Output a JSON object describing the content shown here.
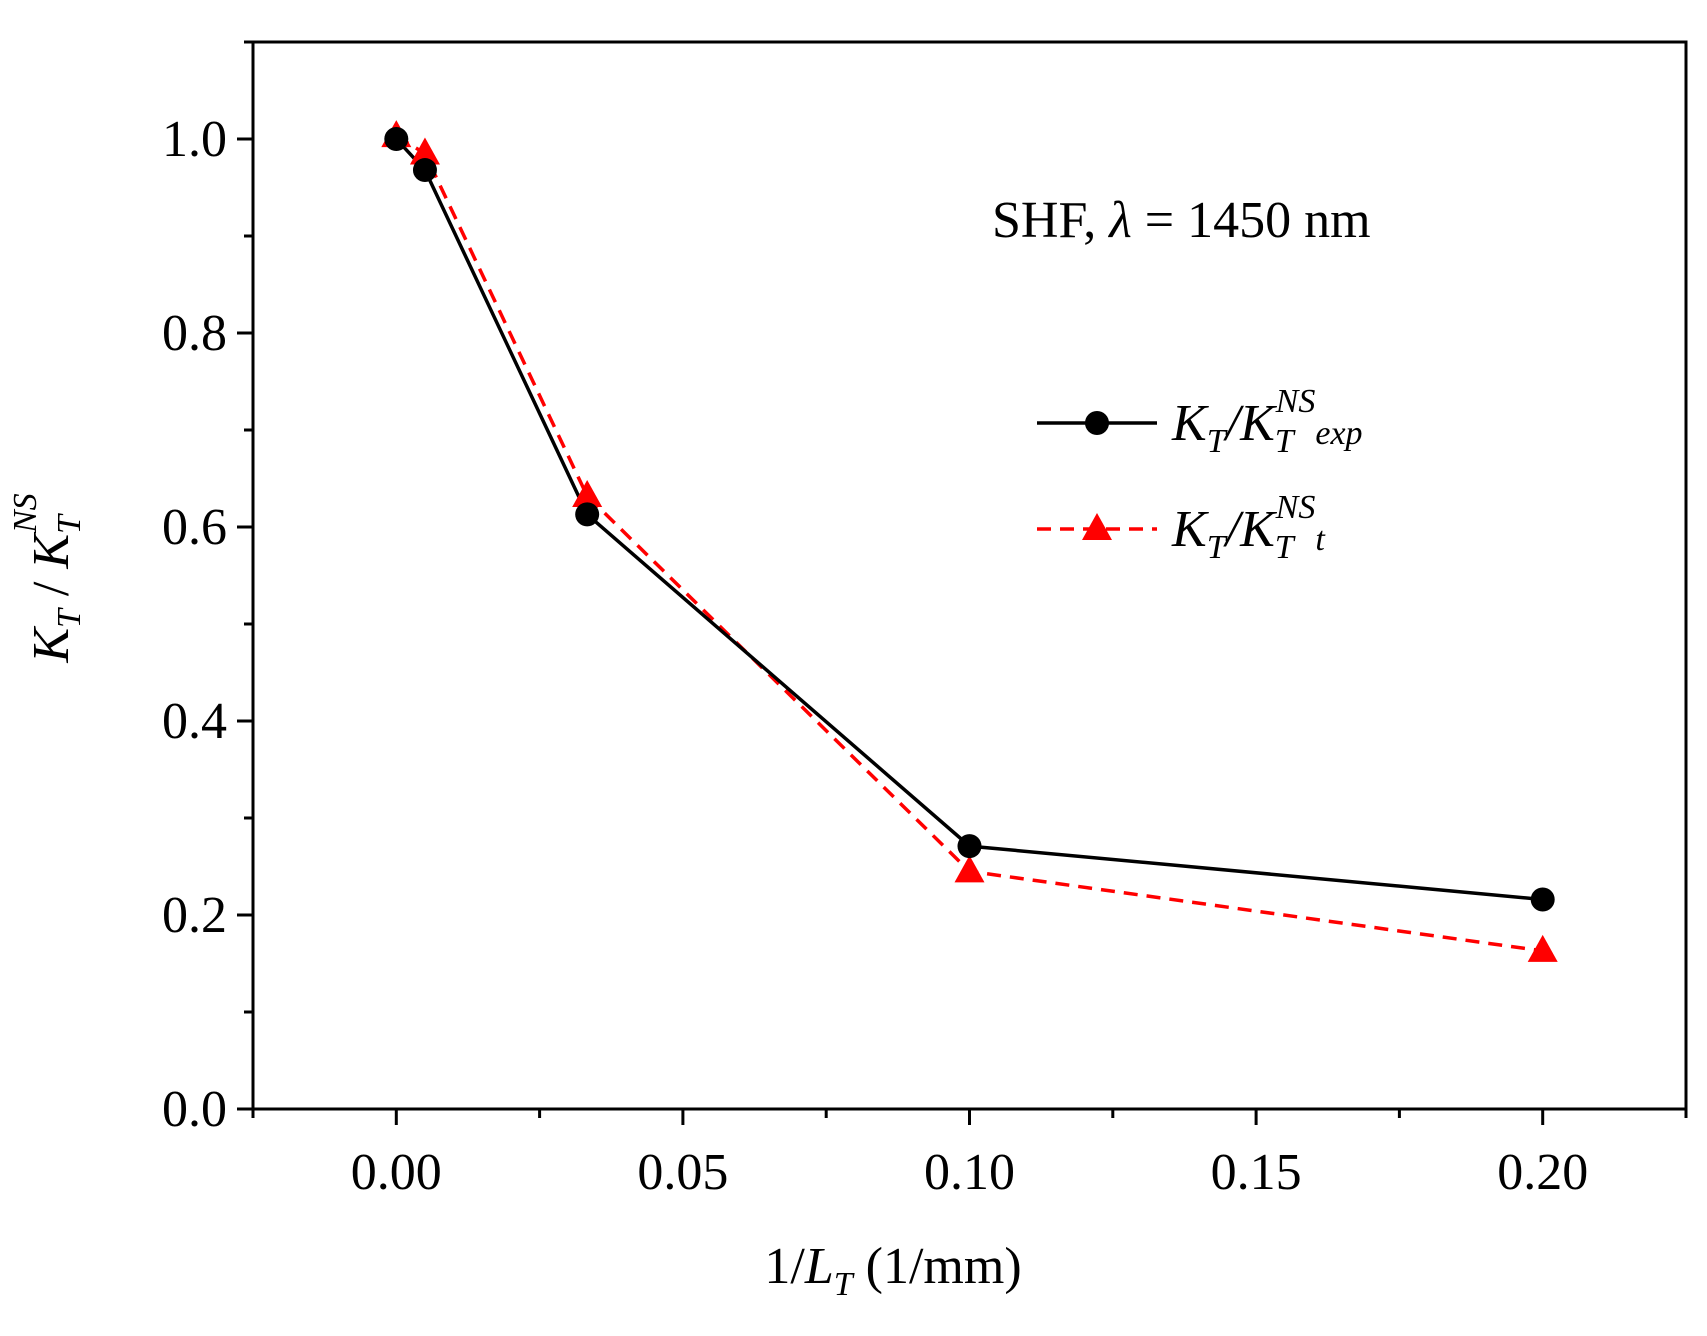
{
  "chart_data": {
    "type": "line",
    "title": "",
    "annotation": {
      "prefix": "SHF, ",
      "symbol": "λ",
      "suffix": " = 1450 nm"
    },
    "xlabel": {
      "prefix": "1/",
      "var": "L",
      "sub": "T",
      "unit": " (1/mm)"
    },
    "ylabel": {
      "k1": "K",
      "s1": "T",
      "mid": " / ",
      "k2": "K",
      "s2": "T",
      "sup": "NS"
    },
    "xlim": [
      -0.025,
      0.225
    ],
    "ylim": [
      0.0,
      1.1
    ],
    "x_ticks": [
      0.0,
      0.05,
      0.1,
      0.15,
      0.2
    ],
    "x_tick_labels": [
      "0.00",
      "0.05",
      "0.10",
      "0.15",
      "0.20"
    ],
    "x_minor_ticks": [
      -0.025,
      0.025,
      0.075,
      0.125,
      0.175,
      0.225
    ],
    "y_ticks": [
      0.0,
      0.2,
      0.4,
      0.6,
      0.8,
      1.0
    ],
    "y_tick_labels": [
      "0.0",
      "0.2",
      "0.4",
      "0.6",
      "0.8",
      "1.0"
    ],
    "y_minor_ticks": [
      0.1,
      0.3,
      0.5,
      0.7,
      0.9,
      1.1
    ],
    "grid": false,
    "legend_position": "right",
    "series": [
      {
        "name": "K_T/K_T^NS_exp",
        "label": {
          "k1": "K",
          "s1": "T",
          "slash": "/",
          "k2": "K",
          "s2": "T",
          "sup": "NS",
          "sub": "exp"
        },
        "color": "#000000",
        "line_style": "solid",
        "marker": "circle",
        "x": [
          0.0,
          0.005,
          0.0333,
          0.1,
          0.2
        ],
        "y": [
          1.0,
          0.968,
          0.613,
          0.271,
          0.216
        ]
      },
      {
        "name": "K_T/K_T^NS_t",
        "label": {
          "k1": "K",
          "s1": "T",
          "slash": "/",
          "k2": "K",
          "s2": "T",
          "sup": "NS",
          "sub": "t"
        },
        "color": "#ff0000",
        "line_style": "dashed",
        "marker": "triangle",
        "x": [
          0.0,
          0.005,
          0.0333,
          0.1,
          0.2
        ],
        "y": [
          1.003,
          0.985,
          0.632,
          0.245,
          0.163
        ]
      }
    ]
  }
}
